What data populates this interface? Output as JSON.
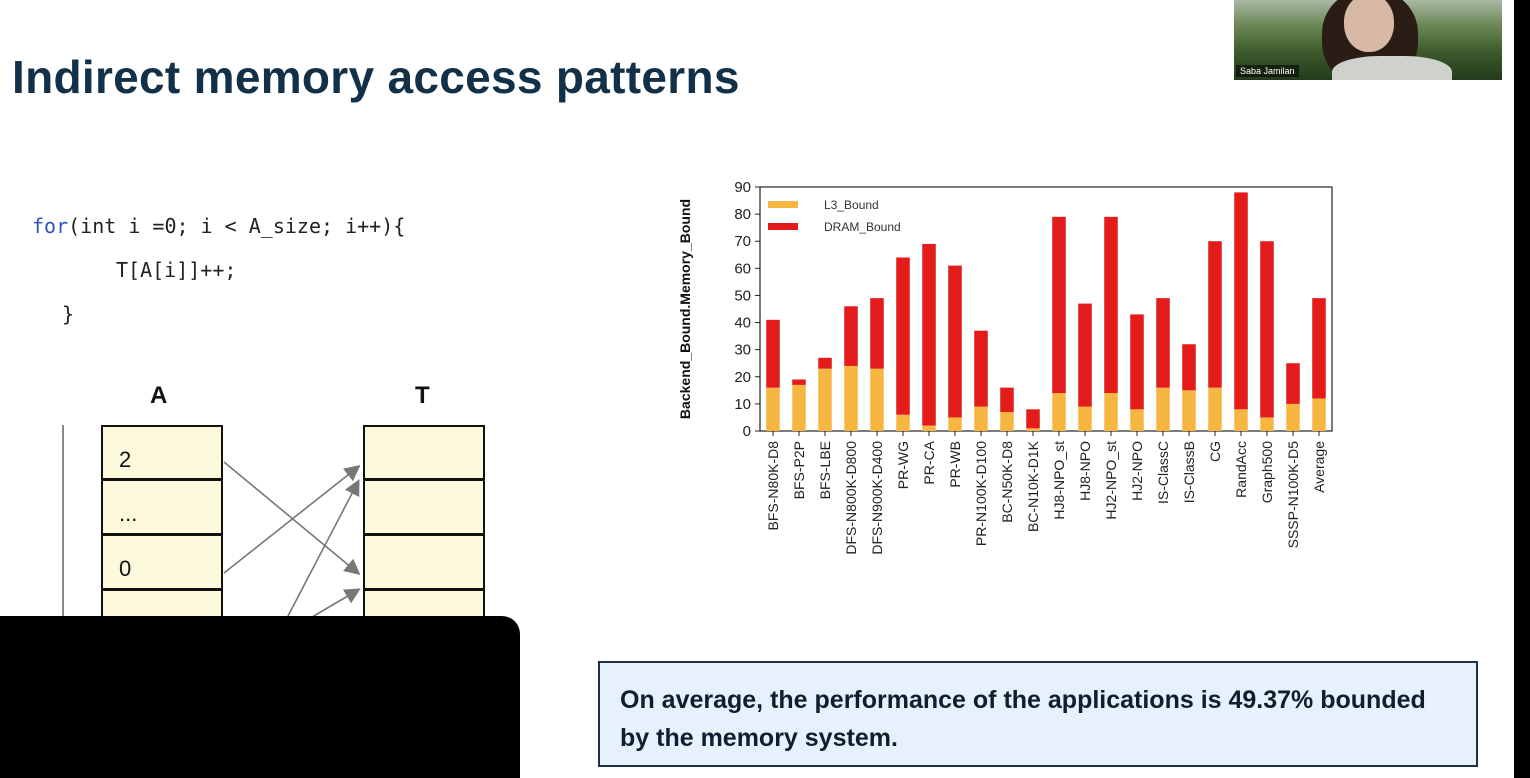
{
  "slide": {
    "title": "Indirect memory access patterns",
    "conclusion": "On average, the performance of the applications is 49.37% bounded by the memory system."
  },
  "webcam": {
    "name": "Saba Jamilan"
  },
  "code": {
    "lines": [
      {
        "kw": "for",
        "rest": "(int i =0; i < A_size; i++){",
        "indent": 0
      },
      {
        "kw": "",
        "rest": "T[A[i]]++;",
        "indent": 1
      },
      {
        "kw": "",
        "rest": "}",
        "indent": 2
      }
    ]
  },
  "diagram": {
    "array_a_label": "A",
    "array_t_label": "T",
    "array_a_cells": [
      "2",
      "...",
      "0",
      ""
    ],
    "array_t_cells": [
      "",
      "",
      "",
      ""
    ]
  },
  "colors": {
    "l3": "#f5b642",
    "dram": "#e41b1b",
    "title": "#123048"
  },
  "chart_data": {
    "type": "bar",
    "stacked": true,
    "ylabel": "Backend_Bound.Memory_Bound",
    "ylim": [
      0,
      90
    ],
    "yticks": [
      0,
      10,
      20,
      30,
      40,
      50,
      60,
      70,
      80,
      90
    ],
    "legend_position": "top-left",
    "categories": [
      "BFS-N80K-D8",
      "BFS-P2P",
      "BFS-LBE",
      "DFS-N800K-D800",
      "DFS-N900K-D400",
      "PR-WG",
      "PR-CA",
      "PR-WB",
      "PR-N100K-D100",
      "BC-N50K-D8",
      "BC-N10K-D1K",
      "HJ8-NPO_st",
      "HJ8-NPO",
      "HJ2-NPO_st",
      "HJ2-NPO",
      "IS-ClassC",
      "IS-ClassB",
      "CG",
      "RandAcc",
      "Graph500",
      "SSSP-N100K-D5",
      "Average"
    ],
    "series": [
      {
        "name": "L3_Bound",
        "values": [
          16,
          17,
          23,
          24,
          23,
          6,
          2,
          5,
          9,
          7,
          1,
          14,
          9,
          14,
          8,
          16,
          15,
          16,
          8,
          5,
          10,
          12
        ]
      },
      {
        "name": "DRAM_Bound",
        "values": [
          25,
          2,
          4,
          22,
          26,
          58,
          67,
          56,
          28,
          9,
          7,
          65,
          38,
          65,
          35,
          33,
          17,
          54,
          80,
          65,
          15,
          37
        ]
      }
    ]
  }
}
